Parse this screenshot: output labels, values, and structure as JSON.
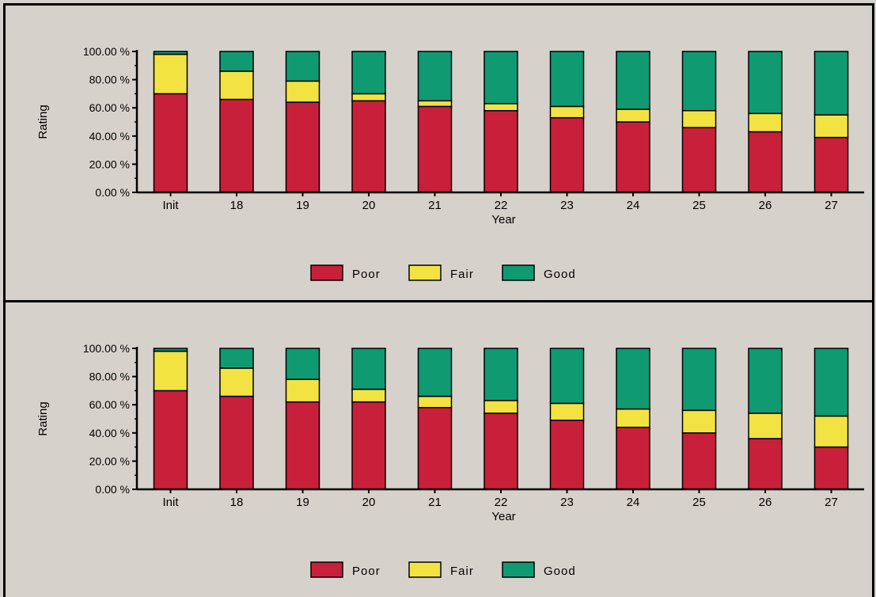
{
  "chart_data": [
    {
      "type": "bar",
      "stacked": true,
      "categories": [
        "Init",
        "18",
        "19",
        "20",
        "21",
        "22",
        "23",
        "24",
        "25",
        "26",
        "27"
      ],
      "series": [
        {
          "name": "Poor",
          "color": "#c8203a",
          "values": [
            70,
            66,
            64,
            65,
            61,
            58,
            53,
            50,
            46,
            43,
            39
          ]
        },
        {
          "name": "Fair",
          "color": "#f2e342",
          "values": [
            28,
            20,
            15,
            5,
            4,
            5,
            8,
            9,
            12,
            13,
            16
          ]
        },
        {
          "name": "Good",
          "color": "#0f9a72",
          "values": [
            2,
            14,
            21,
            30,
            35,
            37,
            39,
            41,
            42,
            44,
            45
          ]
        }
      ],
      "xlabel": "Year",
      "ylabel": "Rating",
      "ylim": [
        0,
        100
      ],
      "yticks": [
        "0.00 %",
        "20.00 %",
        "40.00 %",
        "60.00 %",
        "80.00 %",
        "100.00 %"
      ],
      "legend": "bottom"
    },
    {
      "type": "bar",
      "stacked": true,
      "categories": [
        "Init",
        "18",
        "19",
        "20",
        "21",
        "22",
        "23",
        "24",
        "25",
        "26",
        "27"
      ],
      "series": [
        {
          "name": "Poor",
          "color": "#c8203a",
          "values": [
            70,
            66,
            62,
            62,
            58,
            54,
            49,
            44,
            40,
            36,
            30
          ]
        },
        {
          "name": "Fair",
          "color": "#f2e342",
          "values": [
            28,
            20,
            16,
            9,
            8,
            9,
            12,
            13,
            16,
            18,
            22
          ]
        },
        {
          "name": "Good",
          "color": "#0f9a72",
          "values": [
            2,
            14,
            22,
            29,
            34,
            37,
            39,
            43,
            44,
            46,
            48
          ]
        }
      ],
      "xlabel": "Year",
      "ylabel": "Rating",
      "ylim": [
        0,
        100
      ],
      "yticks": [
        "0.00 %",
        "20.00 %",
        "40.00 %",
        "60.00 %",
        "80.00 %",
        "100.00 %"
      ],
      "legend": "bottom"
    }
  ]
}
